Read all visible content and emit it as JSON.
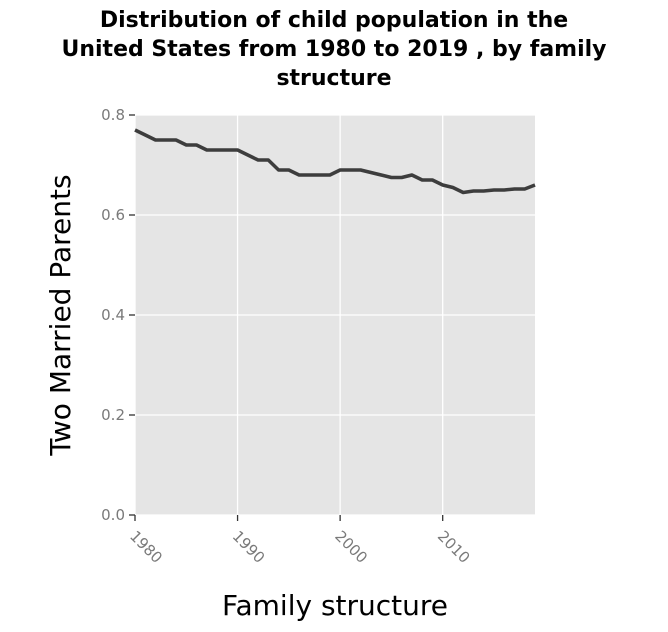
{
  "chart_data": {
    "type": "line",
    "title": "Distribution of child population in the\nUnited States from 1980 to 2019 , by family\nstructure",
    "xlabel": "Family structure",
    "ylabel": "Two Married Parents",
    "xlim": [
      1980,
      2019
    ],
    "ylim": [
      0,
      0.8
    ],
    "xticks": [
      "1980",
      "1990",
      "2000",
      "2010"
    ],
    "yticks": [
      "0.0",
      "0.2",
      "0.4",
      "0.6",
      "0.8"
    ],
    "grid": true,
    "legend": "none",
    "series": [
      {
        "name": "",
        "x": [
          1980,
          1981,
          1982,
          1983,
          1984,
          1985,
          1986,
          1987,
          1988,
          1989,
          1990,
          1991,
          1992,
          1993,
          1994,
          1995,
          1996,
          1997,
          1998,
          1999,
          2000,
          2001,
          2002,
          2003,
          2004,
          2005,
          2006,
          2007,
          2008,
          2009,
          2010,
          2011,
          2012,
          2013,
          2014,
          2015,
          2016,
          2017,
          2018,
          2019
        ],
        "values": [
          0.77,
          0.76,
          0.75,
          0.75,
          0.75,
          0.74,
          0.74,
          0.73,
          0.73,
          0.73,
          0.73,
          0.72,
          0.71,
          0.71,
          0.69,
          0.69,
          0.68,
          0.68,
          0.68,
          0.68,
          0.69,
          0.69,
          0.69,
          0.685,
          0.68,
          0.675,
          0.675,
          0.68,
          0.67,
          0.67,
          0.66,
          0.655,
          0.645,
          0.648,
          0.648,
          0.65,
          0.65,
          0.652,
          0.652,
          0.66
        ]
      }
    ]
  }
}
